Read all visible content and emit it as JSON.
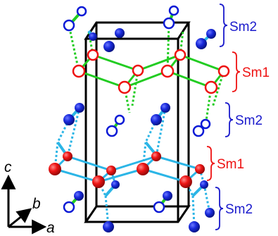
{
  "colors": {
    "sm2_atom": "#0a1ad6",
    "sm1_atom": "#ee1111",
    "upper_bond": "#22cc22",
    "lower_bond": "#2bb5e6",
    "cell_edge": "#000000",
    "label_blue": "#1a1acc",
    "label_red": "#ee1111"
  },
  "layer_labels": [
    {
      "id": "sm2-top",
      "text": "Sm2",
      "kind": "sm2"
    },
    {
      "id": "sm1-upper",
      "text": "Sm1",
      "kind": "sm1"
    },
    {
      "id": "sm2-middle",
      "text": "Sm2",
      "kind": "sm2"
    },
    {
      "id": "sm1-lower",
      "text": "Sm1",
      "kind": "sm1"
    },
    {
      "id": "sm2-bottom",
      "text": "Sm2",
      "kind": "sm2"
    }
  ],
  "axes": {
    "c": "c",
    "b": "b",
    "a": "a"
  }
}
